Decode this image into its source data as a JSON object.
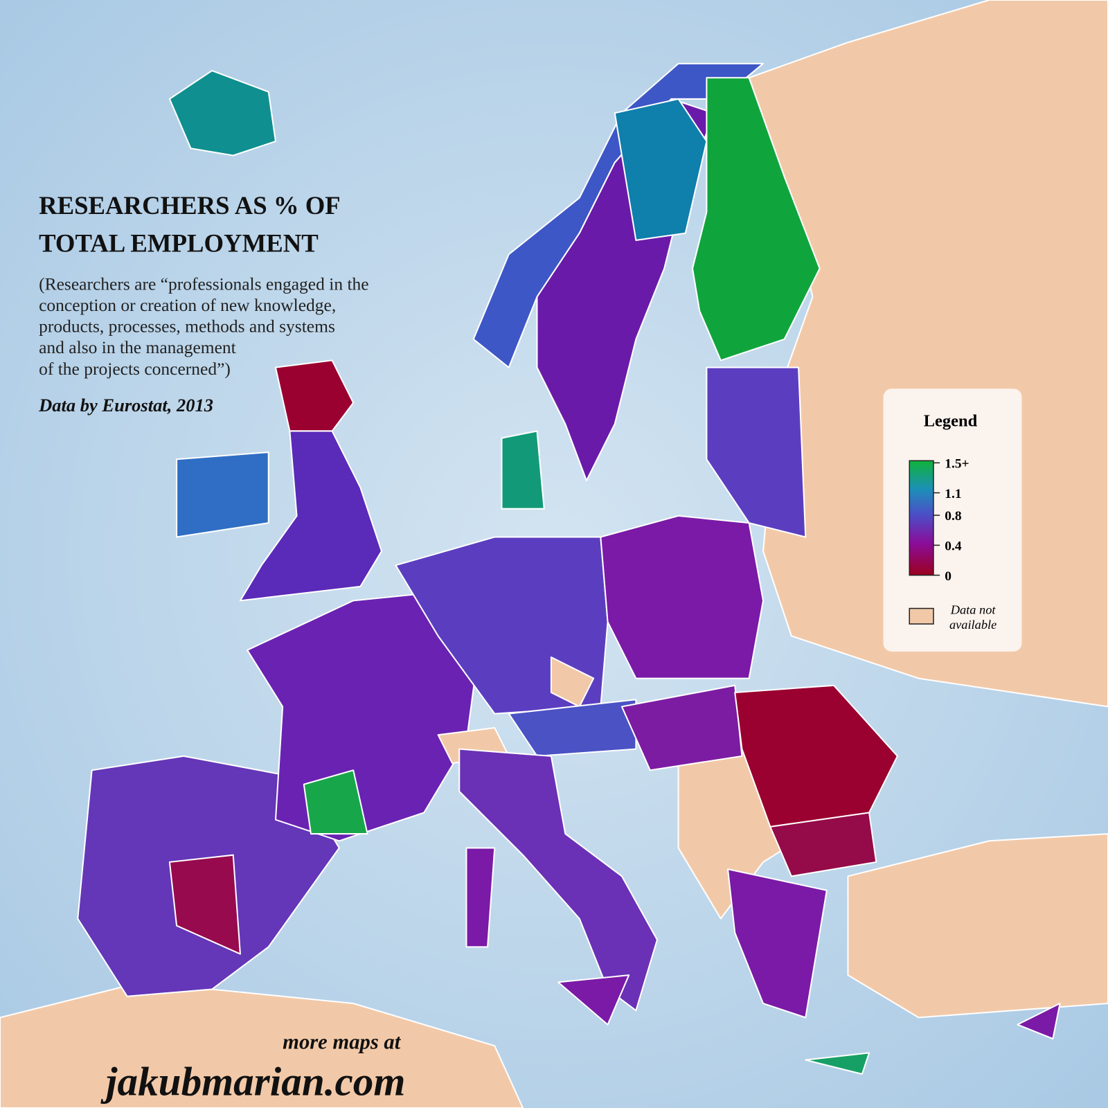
{
  "header": {
    "title": [
      "RESEARCHERS AS % OF",
      "TOTAL EMPLOYMENT"
    ],
    "subtitle": [
      "(Researchers are “professionals engaged in the",
      "conception or creation of new knowledge,",
      "products, processes, methods and systems",
      "and also in the management",
      "of the projects concerned”)"
    ],
    "source": "Data by Eurostat, 2013"
  },
  "legend": {
    "title": "Legend",
    "ticks": [
      {
        "value": 1.5,
        "label": "1.5+"
      },
      1.1,
      0.8,
      0.4,
      0
    ],
    "na_label": [
      "Data not",
      "available"
    ]
  },
  "footer": {
    "line1": "more maps at",
    "site": "jakubmarian.com"
  }
}
